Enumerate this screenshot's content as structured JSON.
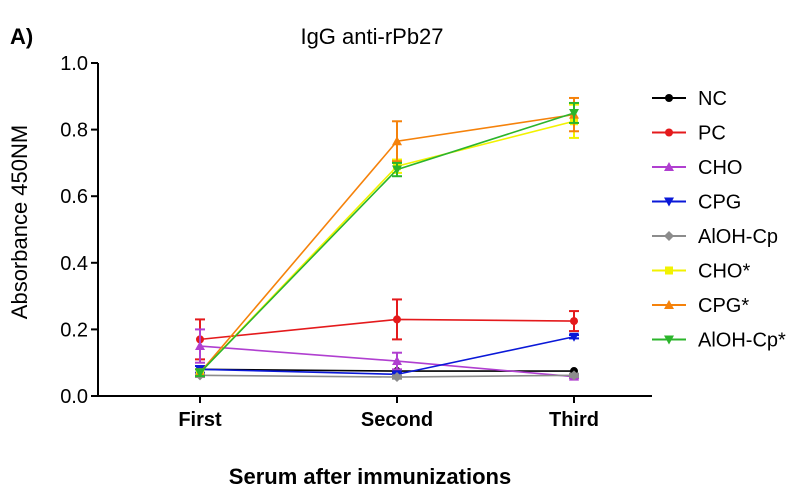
{
  "panel_label": "A)",
  "chart_data": {
    "type": "line",
    "title": "IgG anti-rPb27",
    "xlabel": "Serum after  immunizations",
    "ylabel": "Absorbance 450NM",
    "categories": [
      "First",
      "Second",
      "Third"
    ],
    "ylim": [
      0.0,
      1.0
    ],
    "yticks": [
      "0.0",
      "0.2",
      "0.4",
      "0.6",
      "0.8",
      "1.0"
    ],
    "grid": false,
    "legend_position": "right",
    "series": [
      {
        "name": "NC",
        "color": "#000000",
        "marker": "circle",
        "values": [
          0.08,
          0.075,
          0.075
        ],
        "errors": [
          0,
          0,
          0
        ]
      },
      {
        "name": "PC",
        "color": "#e41a1c",
        "marker": "circle",
        "values": [
          0.17,
          0.23,
          0.225
        ],
        "errors": [
          0.06,
          0.06,
          0.03
        ]
      },
      {
        "name": "CHO",
        "color": "#b03fd0",
        "marker": "triangle-up",
        "values": [
          0.15,
          0.105,
          0.058
        ],
        "errors": [
          0.05,
          0.025,
          0.005
        ]
      },
      {
        "name": "CPG",
        "color": "#0a18d8",
        "marker": "triangle-down",
        "values": [
          0.08,
          0.065,
          0.178
        ],
        "errors": [
          0.01,
          0.005,
          0.005
        ]
      },
      {
        "name": "AlOH-Cp",
        "color": "#8c8c8c",
        "marker": "diamond",
        "values": [
          0.062,
          0.057,
          0.062
        ],
        "errors": [
          0.005,
          0.005,
          0.005
        ]
      },
      {
        "name": "CHO*",
        "color": "#f2f200",
        "marker": "square",
        "values": [
          0.07,
          0.69,
          0.825
        ],
        "errors": [
          0.01,
          0.02,
          0.05
        ]
      },
      {
        "name": "CPG*",
        "color": "#f5820b",
        "marker": "triangle-up",
        "values": [
          0.07,
          0.765,
          0.845
        ],
        "errors": [
          0.01,
          0.06,
          0.05
        ]
      },
      {
        "name": "AlOH-Cp*",
        "color": "#2bb52b",
        "marker": "triangle-down",
        "values": [
          0.07,
          0.68,
          0.85
        ],
        "errors": [
          0.01,
          0.02,
          0.03
        ]
      }
    ]
  }
}
